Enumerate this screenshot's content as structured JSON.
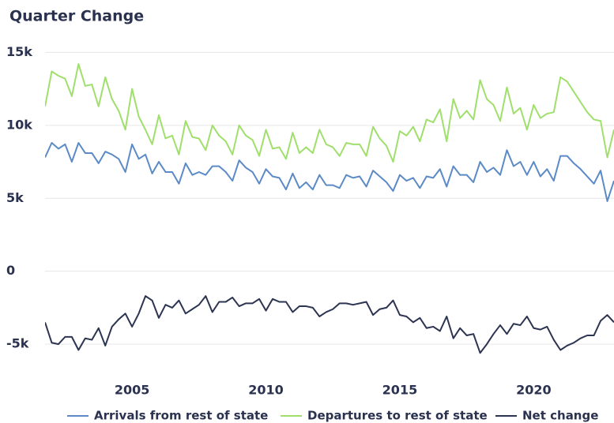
{
  "chart_data": {
    "type": "line",
    "title": "Quarter Change",
    "x": [
      2001.75,
      2002,
      2002.25,
      2002.5,
      2002.75,
      2003,
      2003.25,
      2003.5,
      2003.75,
      2004,
      2004.25,
      2004.5,
      2004.75,
      2005,
      2005.25,
      2005.5,
      2005.75,
      2006,
      2006.25,
      2006.5,
      2006.75,
      2007,
      2007.25,
      2007.5,
      2007.75,
      2008,
      2008.25,
      2008.5,
      2008.75,
      2009,
      2009.25,
      2009.5,
      2009.75,
      2010,
      2010.25,
      2010.5,
      2010.75,
      2011,
      2011.25,
      2011.5,
      2011.75,
      2012,
      2012.25,
      2012.5,
      2012.75,
      2013,
      2013.25,
      2013.5,
      2013.75,
      2014,
      2014.25,
      2014.5,
      2014.75,
      2015,
      2015.25,
      2015.5,
      2015.75,
      2016,
      2016.25,
      2016.5,
      2016.75,
      2017,
      2017.25,
      2017.5,
      2017.75,
      2018,
      2018.25,
      2018.5,
      2018.75,
      2019,
      2019.25,
      2019.5,
      2019.75,
      2020,
      2020.25,
      2020.5,
      2020.75,
      2021,
      2021.25,
      2021.5,
      2021.75,
      2022,
      2022.25,
      2022.5,
      2022.75,
      2023
    ],
    "series": [
      {
        "name": "Arrivals from rest of state",
        "color": "#5b8ac6",
        "values": [
          7800,
          8800,
          8400,
          8700,
          7500,
          8800,
          8100,
          8100,
          7400,
          8200,
          8000,
          7700,
          6800,
          8700,
          7700,
          8000,
          6700,
          7500,
          6800,
          6800,
          6000,
          7400,
          6600,
          6800,
          6600,
          7200,
          7200,
          6800,
          6200,
          7600,
          7100,
          6800,
          6000,
          7000,
          6500,
          6400,
          5600,
          6700,
          5700,
          6100,
          5600,
          6600,
          5900,
          5900,
          5700,
          6600,
          6400,
          6500,
          5800,
          6900,
          6500,
          6100,
          5500,
          6600,
          6200,
          6400,
          5700,
          6500,
          6400,
          7000,
          5800,
          7200,
          6600,
          6600,
          6100,
          7500,
          6800,
          7100,
          6600,
          8300,
          7200,
          7500,
          6600,
          7500,
          6500,
          7000,
          6200,
          7900,
          7900,
          7400,
          7000,
          6500,
          6000,
          6900,
          4800,
          6200
        ]
      },
      {
        "name": "Departures to rest of state",
        "color": "#9fdf6b",
        "values": [
          11300,
          13700,
          13400,
          13200,
          12000,
          14200,
          12700,
          12800,
          11300,
          13300,
          11800,
          11000,
          9700,
          12500,
          10600,
          9700,
          8700,
          10700,
          9100,
          9300,
          8000,
          10300,
          9200,
          9100,
          8300,
          10000,
          9300,
          8900,
          8000,
          10000,
          9300,
          9000,
          7900,
          9700,
          8400,
          8500,
          7700,
          9500,
          8100,
          8500,
          8100,
          9700,
          8700,
          8500,
          7900,
          8800,
          8700,
          8700,
          7900,
          9900,
          9100,
          8600,
          7500,
          9600,
          9300,
          9900,
          8900,
          10400,
          10200,
          11100,
          8900,
          11800,
          10500,
          11000,
          10400,
          13100,
          11800,
          11400,
          10300,
          12600,
          10800,
          11200,
          9700,
          11400,
          10500,
          10800,
          10900,
          13300,
          13000,
          12300,
          11600,
          10900,
          10400,
          10300,
          7800,
          9700
        ]
      },
      {
        "name": "Net change",
        "color": "#2c3451",
        "values": [
          -3500,
          -4900,
          -5000,
          -4500,
          -4500,
          -5400,
          -4600,
          -4700,
          -3900,
          -5100,
          -3800,
          -3300,
          -2900,
          -3800,
          -2900,
          -1700,
          -2000,
          -3200,
          -2300,
          -2500,
          -2000,
          -2900,
          -2600,
          -2300,
          -1700,
          -2800,
          -2100,
          -2100,
          -1800,
          -2400,
          -2200,
          -2200,
          -1900,
          -2700,
          -1900,
          -2100,
          -2100,
          -2800,
          -2400,
          -2400,
          -2500,
          -3100,
          -2800,
          -2600,
          -2200,
          -2200,
          -2300,
          -2200,
          -2100,
          -3000,
          -2600,
          -2500,
          -2000,
          -3000,
          -3100,
          -3500,
          -3200,
          -3900,
          -3800,
          -4100,
          -3100,
          -4600,
          -3900,
          -4400,
          -4300,
          -5600,
          -5000,
          -4300,
          -3700,
          -4300,
          -3600,
          -3700,
          -3100,
          -3900,
          -4000,
          -3800,
          -4700,
          -5400,
          -5100,
          -4900,
          -4600,
          -4400,
          -4400,
          -3400,
          -3000,
          -3500
        ]
      }
    ],
    "xlim": [
      2001.75,
      2023
    ],
    "xticks": [
      2005,
      2010,
      2015,
      2020
    ],
    "ylim": [
      -6000,
      15000
    ],
    "yticks": [
      {
        "value": -5000,
        "label": "-5k"
      },
      0,
      {
        "value": 5000,
        "label": "5k"
      },
      {
        "value": 10000,
        "label": "10k"
      },
      {
        "value": 15000,
        "label": "15k"
      }
    ],
    "grid": true,
    "legend": "bottom"
  }
}
